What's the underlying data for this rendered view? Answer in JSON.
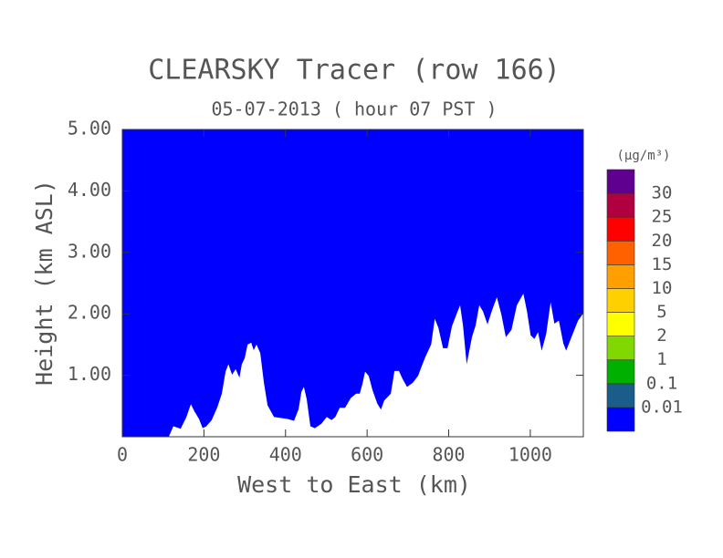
{
  "chart_data": {
    "type": "cross-section",
    "title": "CLEARSKY Tracer (row 166)",
    "subtitle": "05-07-2013 ( hour 07 PST )",
    "x_label": "West to East (km)",
    "y_label": "Height (km ASL)",
    "xlim": [
      0,
      1130
    ],
    "ylim": [
      0,
      5
    ],
    "xticks": [
      0,
      200,
      400,
      600,
      800,
      1000
    ],
    "yticks": [
      {
        "value": 1,
        "label": "1.00"
      },
      {
        "value": 2,
        "label": "2.00"
      },
      {
        "value": 3,
        "label": "3.00"
      },
      {
        "value": 4,
        "label": "4.00"
      },
      {
        "value": 5,
        "label": "5.00"
      }
    ],
    "field_color": "#0000ff",
    "terrain_color": "#ffffff",
    "terrain": {
      "x": [
        0,
        114,
        125,
        143,
        157,
        168,
        177,
        188,
        197,
        206,
        219,
        233,
        244,
        253,
        260,
        269,
        278,
        287,
        293,
        300,
        307,
        316,
        322,
        329,
        338,
        347,
        356,
        372,
        405,
        421,
        432,
        439,
        445,
        452,
        461,
        472,
        488,
        501,
        513,
        522,
        533,
        546,
        560,
        573,
        582,
        589,
        595,
        604,
        613,
        625,
        634,
        642,
        658,
        667,
        678,
        687,
        698,
        712,
        725,
        734,
        743,
        757,
        766,
        775,
        786,
        797,
        808,
        819,
        828,
        835,
        844,
        857,
        866,
        875,
        884,
        895,
        907,
        918,
        929,
        940,
        954,
        967,
        983,
        992,
        1001,
        1010,
        1019,
        1028,
        1039,
        1050,
        1059,
        1070,
        1081,
        1088,
        1101,
        1117,
        1130
      ],
      "values": [
        0,
        0,
        0.17,
        0.13,
        0.32,
        0.53,
        0.41,
        0.29,
        0.14,
        0.17,
        0.27,
        0.48,
        0.7,
        1.06,
        1.18,
        1.01,
        1.1,
        0.96,
        1.18,
        1.28,
        1.5,
        1.53,
        1.41,
        1.5,
        1.36,
        0.88,
        0.51,
        0.32,
        0.29,
        0.26,
        0.45,
        0.73,
        0.81,
        0.61,
        0.17,
        0.14,
        0.21,
        0.32,
        0.27,
        0.32,
        0.47,
        0.47,
        0.63,
        0.7,
        0.7,
        0.87,
        1.06,
        0.99,
        0.76,
        0.54,
        0.44,
        0.59,
        0.7,
        1.07,
        1.07,
        0.94,
        0.81,
        0.88,
        0.99,
        1.15,
        1.3,
        1.5,
        1.92,
        1.77,
        1.44,
        1.44,
        1.8,
        1.99,
        2.14,
        1.81,
        1.18,
        1.62,
        1.81,
        2.14,
        2.04,
        1.83,
        2.07,
        2.27,
        1.99,
        1.62,
        1.74,
        2.14,
        2.33,
        2.04,
        1.65,
        1.59,
        1.7,
        1.4,
        1.67,
        2.19,
        1.84,
        1.89,
        1.52,
        1.4,
        1.62,
        1.89,
        2.01
      ]
    },
    "colorbar": {
      "title": "(μg/m³)",
      "levels": [
        0.01,
        0.1,
        1,
        2,
        5,
        10,
        15,
        20,
        25,
        30
      ],
      "colors": [
        "#0000ff",
        "#1a5c8a",
        "#00b000",
        "#80d800",
        "#ffff00",
        "#ffd000",
        "#ffa000",
        "#ff6000",
        "#ff0000",
        "#b00040",
        "#600090"
      ]
    }
  }
}
